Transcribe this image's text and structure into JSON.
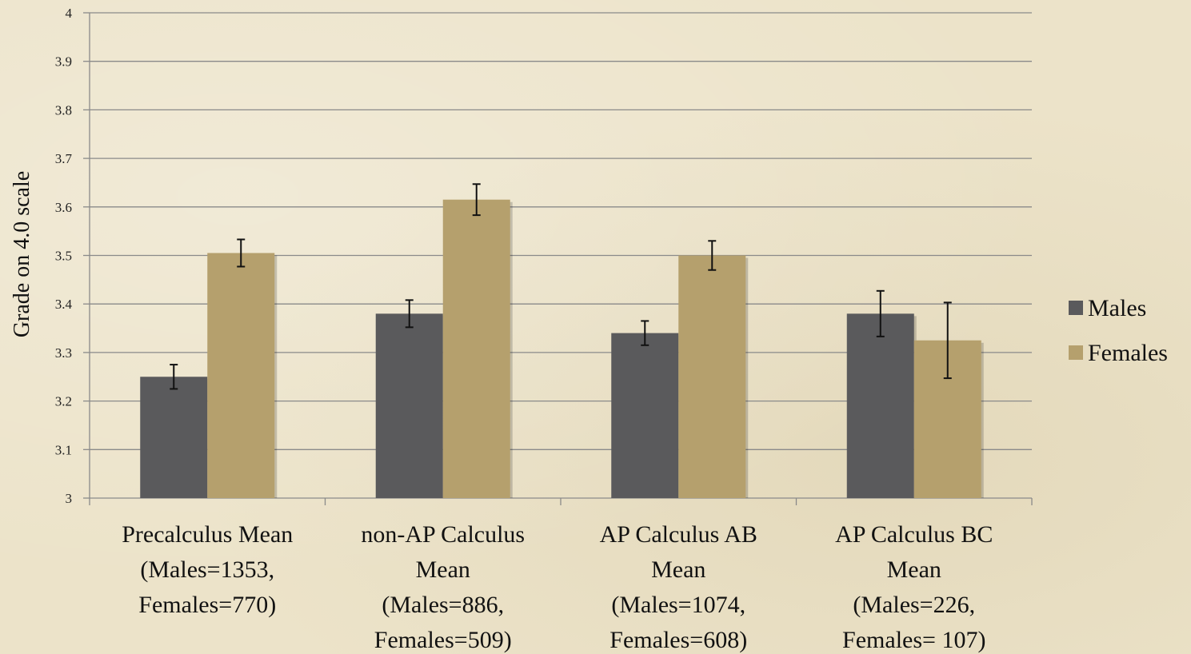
{
  "chart_data": {
    "type": "bar",
    "ylabel": "Grade on 4.0 scale",
    "ylim": [
      3,
      4
    ],
    "yticks": [
      "3",
      "3.1",
      "3.2",
      "3.3",
      "3.4",
      "3.5",
      "3.6",
      "3.7",
      "3.8",
      "3.9",
      "4"
    ],
    "grid": true,
    "legend_position": "right",
    "categories": [
      [
        "Precalculus Mean",
        "(Males=1353,",
        "Females=770)"
      ],
      [
        "non-AP Calculus",
        "Mean",
        "(Males=886,",
        "Females=509)"
      ],
      [
        "AP Calculus AB",
        "Mean",
        "(Males=1074,",
        "Females=608)"
      ],
      [
        "AP Calculus BC",
        "Mean",
        "(Males=226,",
        "Females= 107)"
      ]
    ],
    "series": [
      {
        "name": "Males",
        "color": "#5a5a5c",
        "values": [
          3.25,
          3.38,
          3.34,
          3.38
        ],
        "error": [
          0.025,
          0.028,
          0.025,
          0.047
        ]
      },
      {
        "name": "Females",
        "color": "#b5a06d",
        "values": [
          3.505,
          3.615,
          3.5,
          3.325
        ],
        "error": [
          0.028,
          0.032,
          0.03,
          0.078
        ]
      }
    ]
  }
}
